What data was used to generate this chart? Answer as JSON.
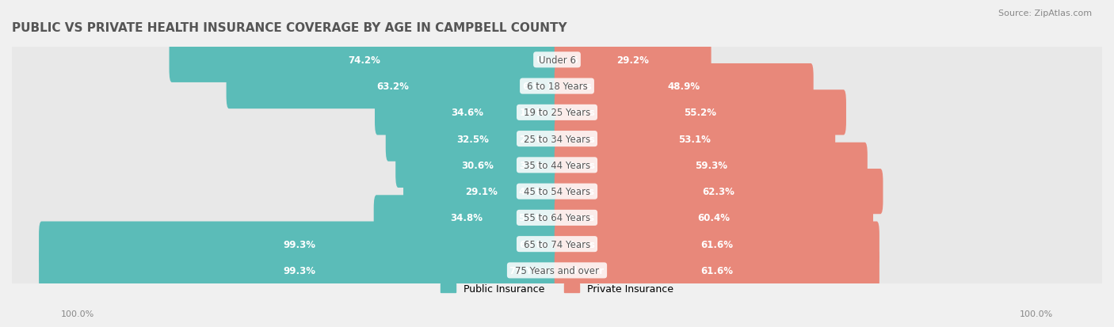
{
  "title": "PUBLIC VS PRIVATE HEALTH INSURANCE COVERAGE BY AGE IN CAMPBELL COUNTY",
  "source": "Source: ZipAtlas.com",
  "categories": [
    "Under 6",
    "6 to 18 Years",
    "19 to 25 Years",
    "25 to 34 Years",
    "35 to 44 Years",
    "45 to 54 Years",
    "55 to 64 Years",
    "65 to 74 Years",
    "75 Years and over"
  ],
  "public_values": [
    74.2,
    63.2,
    34.6,
    32.5,
    30.6,
    29.1,
    34.8,
    99.3,
    99.3
  ],
  "private_values": [
    29.2,
    48.9,
    55.2,
    53.1,
    59.3,
    62.3,
    60.4,
    61.6,
    61.6
  ],
  "public_color": "#5bbcb8",
  "private_color": "#e8887a",
  "background_color": "#f0f0f0",
  "bar_bg_color": "#ffffff",
  "row_bg_color": "#f7f7f7",
  "title_color": "#555555",
  "label_color": "#555555",
  "axis_label_color": "#888888",
  "legend_public": "Public Insurance",
  "legend_private": "Private Insurance"
}
